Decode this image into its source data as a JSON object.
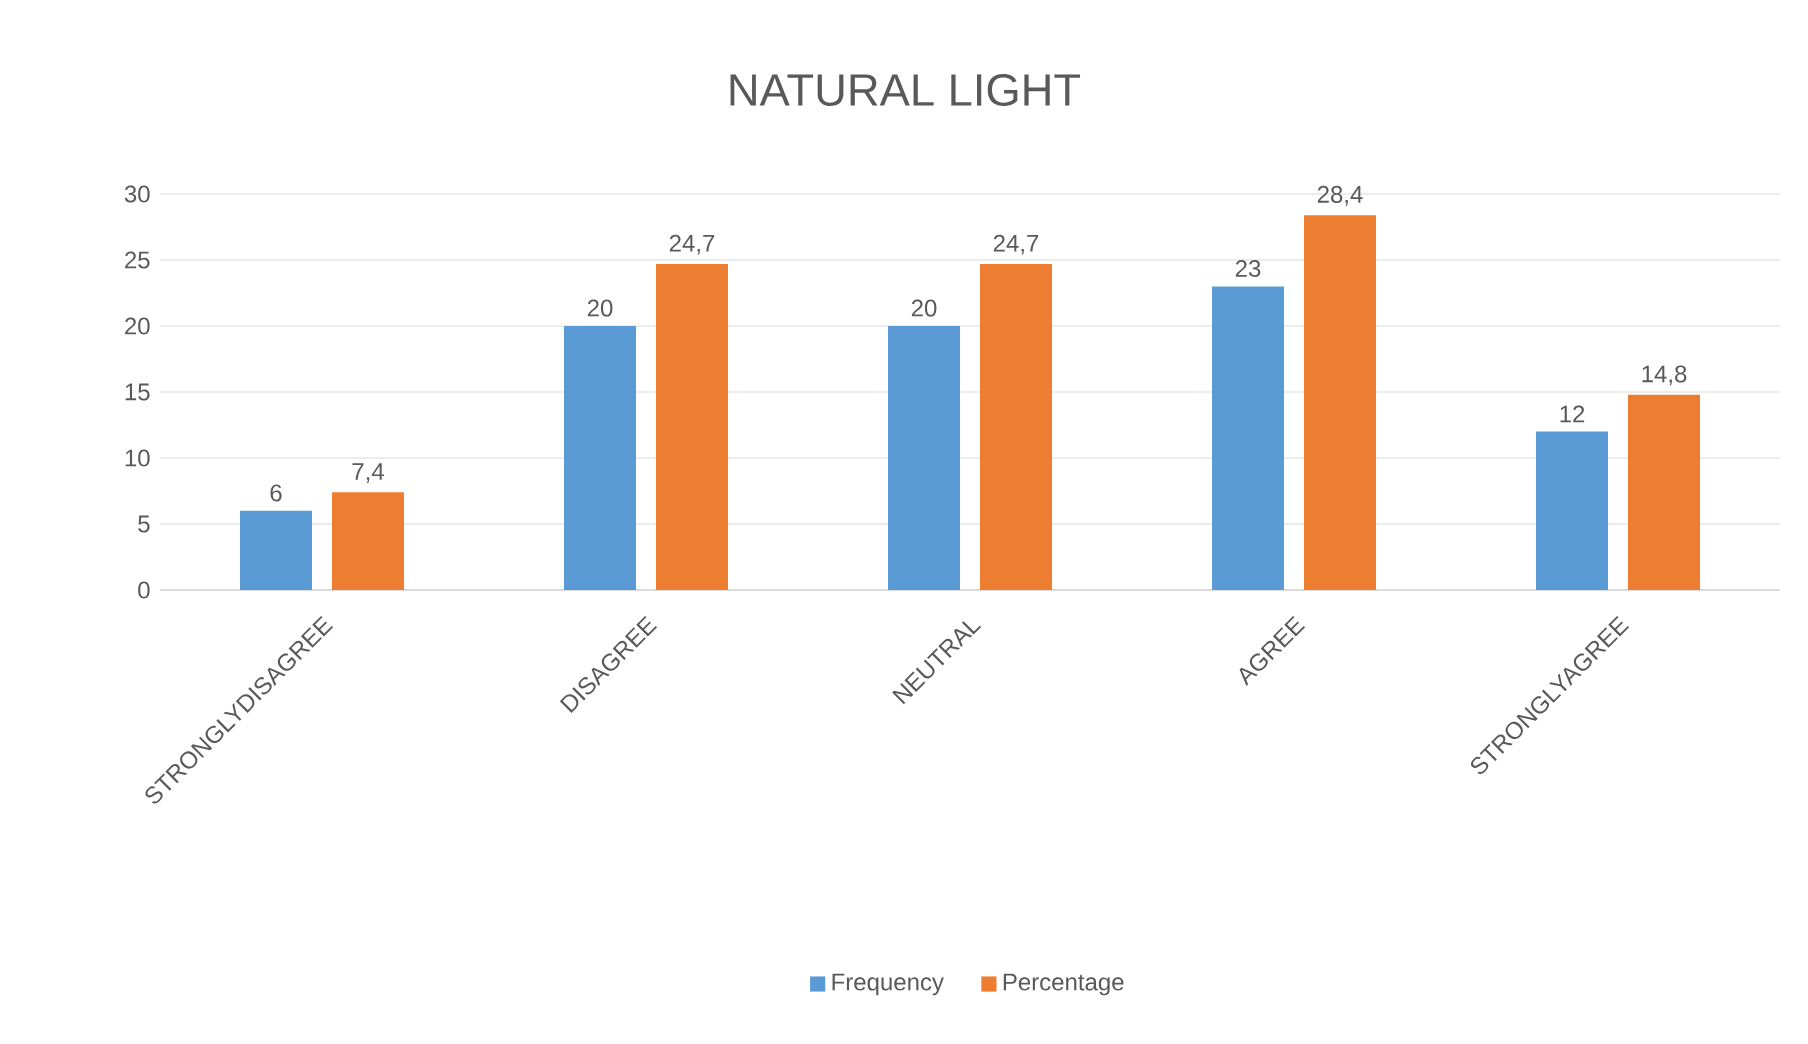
{
  "chart_data": {
    "type": "bar",
    "title": "NATURAL LIGHT",
    "categories": [
      "STRONGLYDISAGREE",
      "DISAGREE",
      "NEUTRAL",
      "AGREE",
      "STRONGLYAGREE"
    ],
    "series": [
      {
        "name": "Frequency",
        "color": "#5b9bd5",
        "values": [
          6,
          20,
          20,
          23,
          12
        ],
        "value_labels": [
          "6",
          "20",
          "20",
          "23",
          "12"
        ]
      },
      {
        "name": "Percentage",
        "color": "#ed7d31",
        "values": [
          7.4,
          24.7,
          24.7,
          28.4,
          14.8
        ],
        "value_labels": [
          "7,4",
          "24,7",
          "24,7",
          "28,4",
          "14,8"
        ]
      }
    ],
    "ylim": [
      0,
      30
    ],
    "yticks": [
      0,
      5,
      10,
      15,
      20,
      25,
      30
    ],
    "grid": "y",
    "legend": "bottom"
  }
}
